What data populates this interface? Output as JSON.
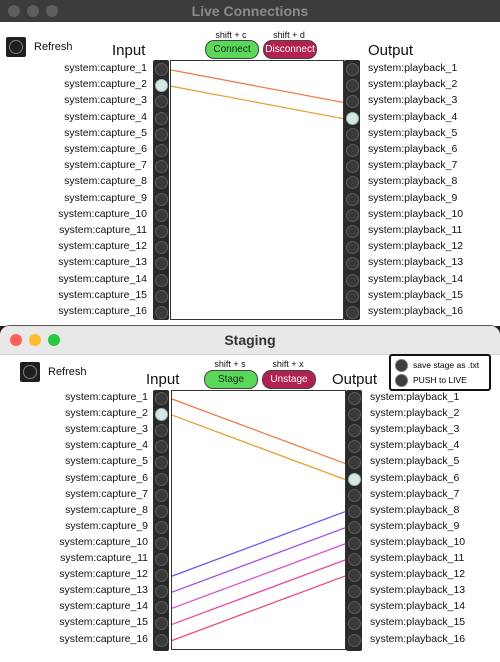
{
  "live": {
    "title": "Live Connections",
    "refresh_label": "Refresh",
    "input_heading": "Input",
    "output_heading": "Output",
    "connect_hint": "shift + c",
    "connect_label": "Connect",
    "disconnect_hint": "shift + d",
    "disconnect_label": "Disconnect",
    "inputs": [
      "system:capture_1",
      "system:capture_2",
      "system:capture_3",
      "system:capture_4",
      "system:capture_5",
      "system:capture_6",
      "system:capture_7",
      "system:capture_8",
      "system:capture_9",
      "system:capture_10",
      "system:capture_11",
      "system:capture_12",
      "system:capture_13",
      "system:capture_14",
      "system:capture_15",
      "system:capture_16"
    ],
    "outputs": [
      "system:playback_1",
      "system:playback_2",
      "system:playback_3",
      "system:playback_4",
      "system:playback_5",
      "system:playback_6",
      "system:playback_7",
      "system:playback_8",
      "system:playback_9",
      "system:playback_10",
      "system:playback_11",
      "system:playback_12",
      "system:playback_13",
      "system:playback_14",
      "system:playback_15",
      "system:playback_16"
    ],
    "selected_input": 2,
    "selected_output": 4,
    "connections": [
      {
        "from": 1,
        "to": 3,
        "color": "#f07a4a"
      },
      {
        "from": 2,
        "to": 4,
        "color": "#e8a33a"
      }
    ]
  },
  "staging": {
    "title": "Staging",
    "refresh_label": "Refresh",
    "input_heading": "Input",
    "output_heading": "Output",
    "stage_hint": "shift + s",
    "stage_label": "Stage",
    "unstage_hint": "shift + x",
    "unstage_label": "Unstage",
    "save_label": "save stage as .txt",
    "push_label": "PUSH to LIVE",
    "inputs": [
      "system:capture_1",
      "system:capture_2",
      "system:capture_3",
      "system:capture_4",
      "system:capture_5",
      "system:capture_6",
      "system:capture_7",
      "system:capture_8",
      "system:capture_9",
      "system:capture_10",
      "system:capture_11",
      "system:capture_12",
      "system:capture_13",
      "system:capture_14",
      "system:capture_15",
      "system:capture_16"
    ],
    "outputs": [
      "system:playback_1",
      "system:playback_2",
      "system:playback_3",
      "system:playback_4",
      "system:playback_5",
      "system:playback_6",
      "system:playback_7",
      "system:playback_8",
      "system:playback_9",
      "system:playback_10",
      "system:playback_11",
      "system:playback_12",
      "system:playback_13",
      "system:playback_14",
      "system:playback_15",
      "system:playback_16"
    ],
    "selected_input": 2,
    "selected_output": 6,
    "connections": [
      {
        "from": 1,
        "to": 5,
        "color": "#f07a4a"
      },
      {
        "from": 2,
        "to": 6,
        "color": "#e8a33a"
      },
      {
        "from": 12,
        "to": 8,
        "color": "#6b5bf0"
      },
      {
        "from": 13,
        "to": 9,
        "color": "#a24fe0"
      },
      {
        "from": 14,
        "to": 10,
        "color": "#d155d6"
      },
      {
        "from": 15,
        "to": 11,
        "color": "#e04fa8"
      },
      {
        "from": 16,
        "to": 12,
        "color": "#f04a74"
      }
    ]
  }
}
